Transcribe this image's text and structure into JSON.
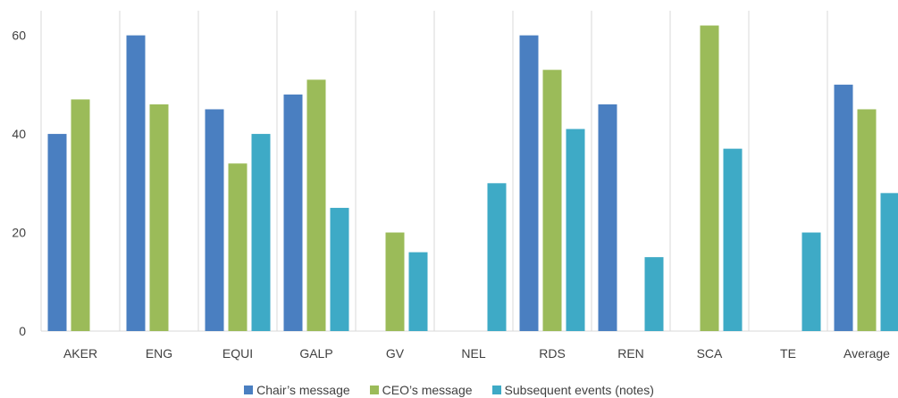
{
  "chart_data": {
    "type": "bar",
    "title": "",
    "xlabel": "",
    "ylabel": "",
    "categories": [
      "AKER",
      "ENG",
      "EQUI",
      "GALP",
      "GV",
      "NEL",
      "RDS",
      "REN",
      "SCA",
      "TE",
      "Average"
    ],
    "series": [
      {
        "name": "Chair’s message",
        "color": "#4a7fc1",
        "values": [
          40,
          60,
          45,
          48,
          0,
          0,
          60,
          46,
          0,
          0,
          50
        ]
      },
      {
        "name": "CEO’s message",
        "color": "#9bbb59",
        "values": [
          47,
          46,
          34,
          51,
          20,
          0,
          53,
          0,
          62,
          0,
          45
        ]
      },
      {
        "name": "Subsequent events (notes)",
        "color": "#3eaac6",
        "values": [
          0,
          0,
          40,
          25,
          16,
          30,
          41,
          15,
          37,
          20,
          28
        ]
      }
    ],
    "ylim": [
      0,
      65
    ],
    "yticks": [
      0,
      20,
      40,
      60
    ],
    "grid": "vertical-category-separators",
    "legend_position": "bottom"
  }
}
